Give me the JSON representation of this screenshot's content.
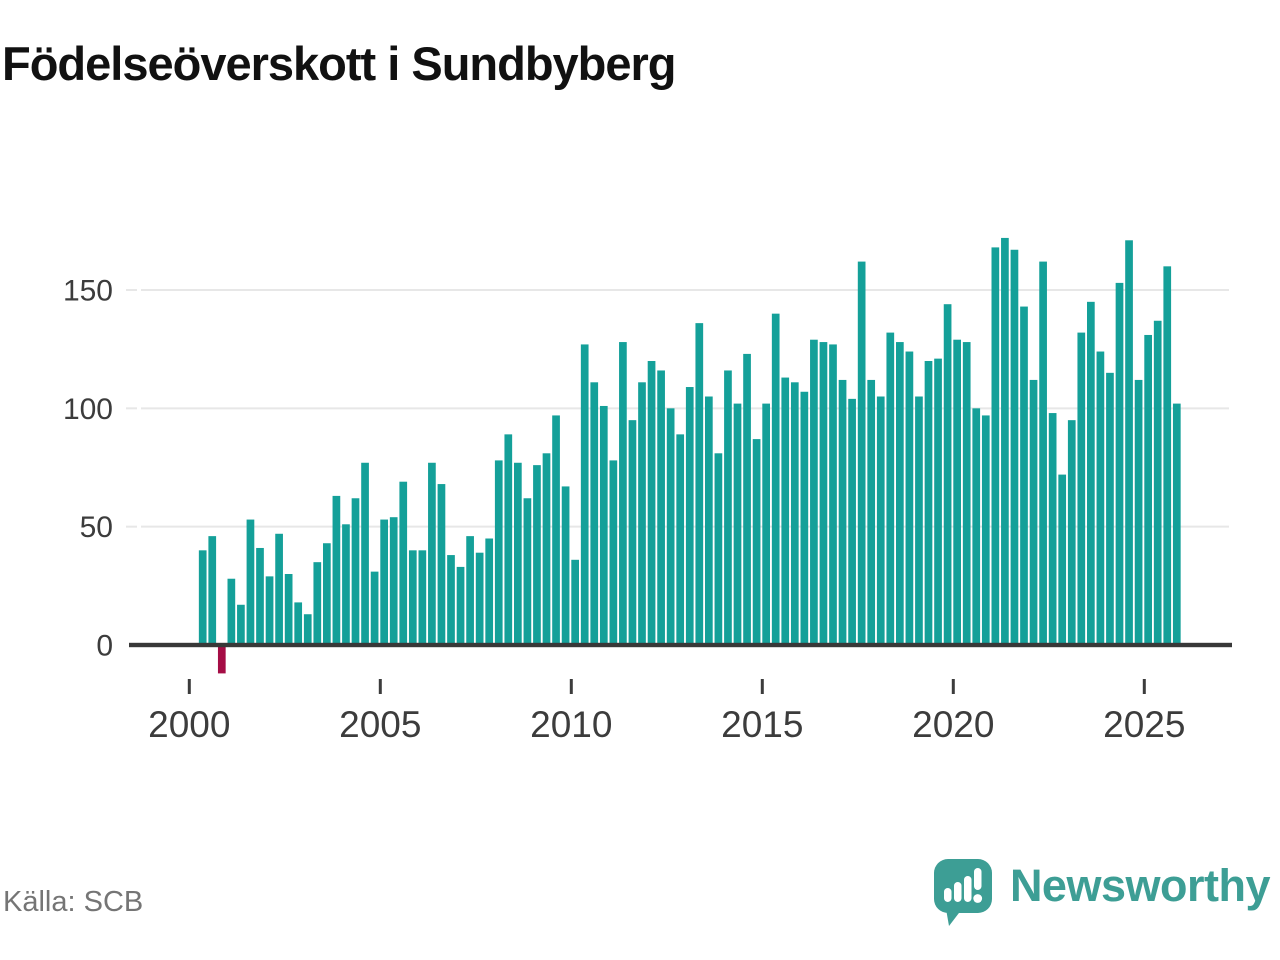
{
  "title": "Födelseöverskott i Sundbyberg",
  "source": "Källa: SCB",
  "branding": {
    "wordmark": "Newsworthy",
    "icon": "newsworthy-speech-bubble-bar-chart-icon"
  },
  "colors": {
    "bar_positive": "#14a099",
    "bar_negative": "#a50d45",
    "grid": "#e7e7e7",
    "axis_line": "#383838",
    "axis_text": "#3c3c3c",
    "title_text": "#111111",
    "source_text": "#757575",
    "brand_teal": "#3d9e95"
  },
  "chart_data": {
    "type": "bar",
    "title": "Födelseöverskott i Sundbyberg",
    "xlabel": "",
    "ylabel": "",
    "frequency": "quarterly",
    "x_start": "2000 Q2",
    "x_end": "2025 Q4",
    "values": [
      40,
      46,
      -12,
      28,
      17,
      53,
      41,
      29,
      47,
      30,
      18,
      13,
      35,
      43,
      63,
      51,
      62,
      77,
      31,
      53,
      54,
      69,
      40,
      40,
      77,
      68,
      38,
      33,
      46,
      39,
      45,
      78,
      89,
      77,
      62,
      76,
      81,
      97,
      67,
      36,
      127,
      111,
      101,
      78,
      128,
      95,
      111,
      120,
      116,
      100,
      89,
      109,
      136,
      105,
      81,
      116,
      102,
      123,
      87,
      102,
      140,
      113,
      111,
      107,
      129,
      128,
      127,
      112,
      104,
      162,
      112,
      105,
      132,
      128,
      124,
      105,
      120,
      121,
      144,
      129,
      128,
      100,
      97,
      168,
      172,
      167,
      143,
      112,
      162,
      98,
      72,
      95,
      132,
      145,
      124,
      115,
      153,
      171,
      112,
      131,
      137,
      160,
      102
    ],
    "negative_values_highlighted": true,
    "xticks": [
      2000,
      2005,
      2010,
      2015,
      2020,
      2025
    ],
    "yticks": [
      0,
      50,
      100,
      150
    ],
    "ylim": [
      -20,
      178
    ],
    "grid": "horizontal-only",
    "legend": "none"
  }
}
